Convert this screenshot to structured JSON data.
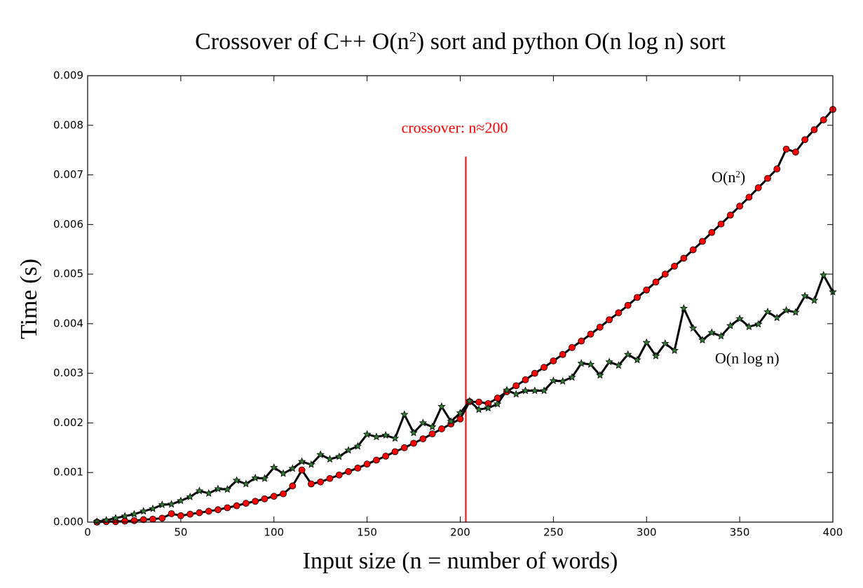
{
  "chart_data": {
    "type": "line",
    "title": [
      "Crossover of C++ O(n",
      "2",
      ") sort and python O(n log n) sort"
    ],
    "x_label": "Input size (n = number of words)",
    "y_label": "Time (s)",
    "x": [
      5,
      10,
      15,
      20,
      25,
      30,
      35,
      40,
      45,
      50,
      55,
      60,
      65,
      70,
      75,
      80,
      85,
      90,
      95,
      100,
      105,
      110,
      115,
      120,
      125,
      130,
      135,
      140,
      145,
      150,
      155,
      160,
      165,
      170,
      175,
      180,
      185,
      190,
      195,
      200,
      205,
      210,
      215,
      220,
      225,
      230,
      235,
      240,
      245,
      250,
      255,
      260,
      265,
      270,
      275,
      280,
      285,
      290,
      295,
      300,
      305,
      310,
      315,
      320,
      325,
      330,
      335,
      340,
      345,
      350,
      355,
      360,
      365,
      370,
      375,
      380,
      385,
      390,
      395,
      400
    ],
    "series": [
      {
        "color": "#000000",
        "marker": "circle",
        "marker_color": "#ff0000",
        "values": [
          0.0,
          1e-05,
          1e-05,
          2e-05,
          3e-05,
          5e-05,
          6e-05,
          8e-05,
          0.00017,
          0.00013,
          0.00016,
          0.00019,
          0.00022,
          0.00025,
          0.00029,
          0.00033,
          0.00038,
          0.00042,
          0.00047,
          0.00052,
          0.00057,
          0.00073,
          0.00105,
          0.00077,
          0.00081,
          0.00088,
          0.00095,
          0.00102,
          0.00109,
          0.00117,
          0.00125,
          0.00133,
          0.00142,
          0.0015,
          0.00159,
          0.00168,
          0.00178,
          0.00188,
          0.00198,
          0.00208,
          0.00243,
          0.00242,
          0.00239,
          0.0025,
          0.00263,
          0.00275,
          0.00287,
          0.003,
          0.00312,
          0.00325,
          0.00338,
          0.00352,
          0.00365,
          0.00379,
          0.00393,
          0.00408,
          0.00422,
          0.00437,
          0.00453,
          0.00468,
          0.00484,
          0.005,
          0.00516,
          0.00532,
          0.00549,
          0.00566,
          0.00584,
          0.00601,
          0.00619,
          0.00637,
          0.00655,
          0.00674,
          0.00693,
          0.00712,
          0.00752,
          0.00746,
          0.00771,
          0.00791,
          0.00811,
          0.00832
        ]
      },
      {
        "color": "#000000",
        "marker": "star",
        "marker_color": "#2e7d32",
        "values": [
          1e-05,
          4e-05,
          8e-05,
          0.00012,
          0.00016,
          0.00022,
          0.00027,
          0.00035,
          0.00036,
          0.00043,
          0.00051,
          0.00063,
          0.00058,
          0.00067,
          0.00066,
          0.00084,
          0.00077,
          0.00089,
          0.00088,
          0.0011,
          0.00098,
          0.00108,
          0.00122,
          0.00116,
          0.00136,
          0.00127,
          0.00132,
          0.00145,
          0.00153,
          0.00177,
          0.00172,
          0.00175,
          0.00169,
          0.00217,
          0.0018,
          0.002,
          0.00192,
          0.00233,
          0.00203,
          0.0022,
          0.00244,
          0.00227,
          0.0023,
          0.00238,
          0.00266,
          0.00258,
          0.00265,
          0.00265,
          0.00265,
          0.00285,
          0.00284,
          0.00292,
          0.0032,
          0.00318,
          0.00296,
          0.00323,
          0.00316,
          0.00338,
          0.00327,
          0.00362,
          0.00335,
          0.0036,
          0.00346,
          0.00431,
          0.00391,
          0.00367,
          0.00382,
          0.00375,
          0.00396,
          0.0041,
          0.00394,
          0.00399,
          0.00424,
          0.00412,
          0.00427,
          0.00423,
          0.00456,
          0.00447,
          0.00498,
          0.00464
        ]
      }
    ],
    "vline": {
      "x": 203,
      "ymax": 0.00737,
      "color": "#ff0000"
    },
    "annotations": [
      {
        "text": [
          "crossover: n≈200"
        ],
        "x": 197,
        "y": 0.00785,
        "color": "#ff0000"
      },
      {
        "text": [
          "O(n",
          "2",
          ")"
        ],
        "x": 344,
        "y": 0.00685,
        "color": "#000000"
      },
      {
        "text": [
          "O(n log n)"
        ],
        "x": 354,
        "y": 0.0032,
        "color": "#000000"
      }
    ],
    "xlim": [
      0,
      400
    ],
    "ylim": [
      0,
      0.009
    ],
    "xticks": [
      0,
      50,
      100,
      150,
      200,
      250,
      300,
      350,
      400
    ],
    "yticks": [
      {
        "value": 0,
        "label": "0.000"
      },
      {
        "value": 0.001,
        "label": "0.001"
      },
      {
        "value": 0.002,
        "label": "0.002"
      },
      {
        "value": 0.003,
        "label": "0.003"
      },
      {
        "value": 0.004,
        "label": "0.004"
      },
      {
        "value": 0.005,
        "label": "0.005"
      },
      {
        "value": 0.006,
        "label": "0.006"
      },
      {
        "value": 0.007,
        "label": "0.007"
      },
      {
        "value": 0.008,
        "label": "0.008"
      },
      {
        "value": 0.009,
        "label": "0.009"
      }
    ]
  }
}
